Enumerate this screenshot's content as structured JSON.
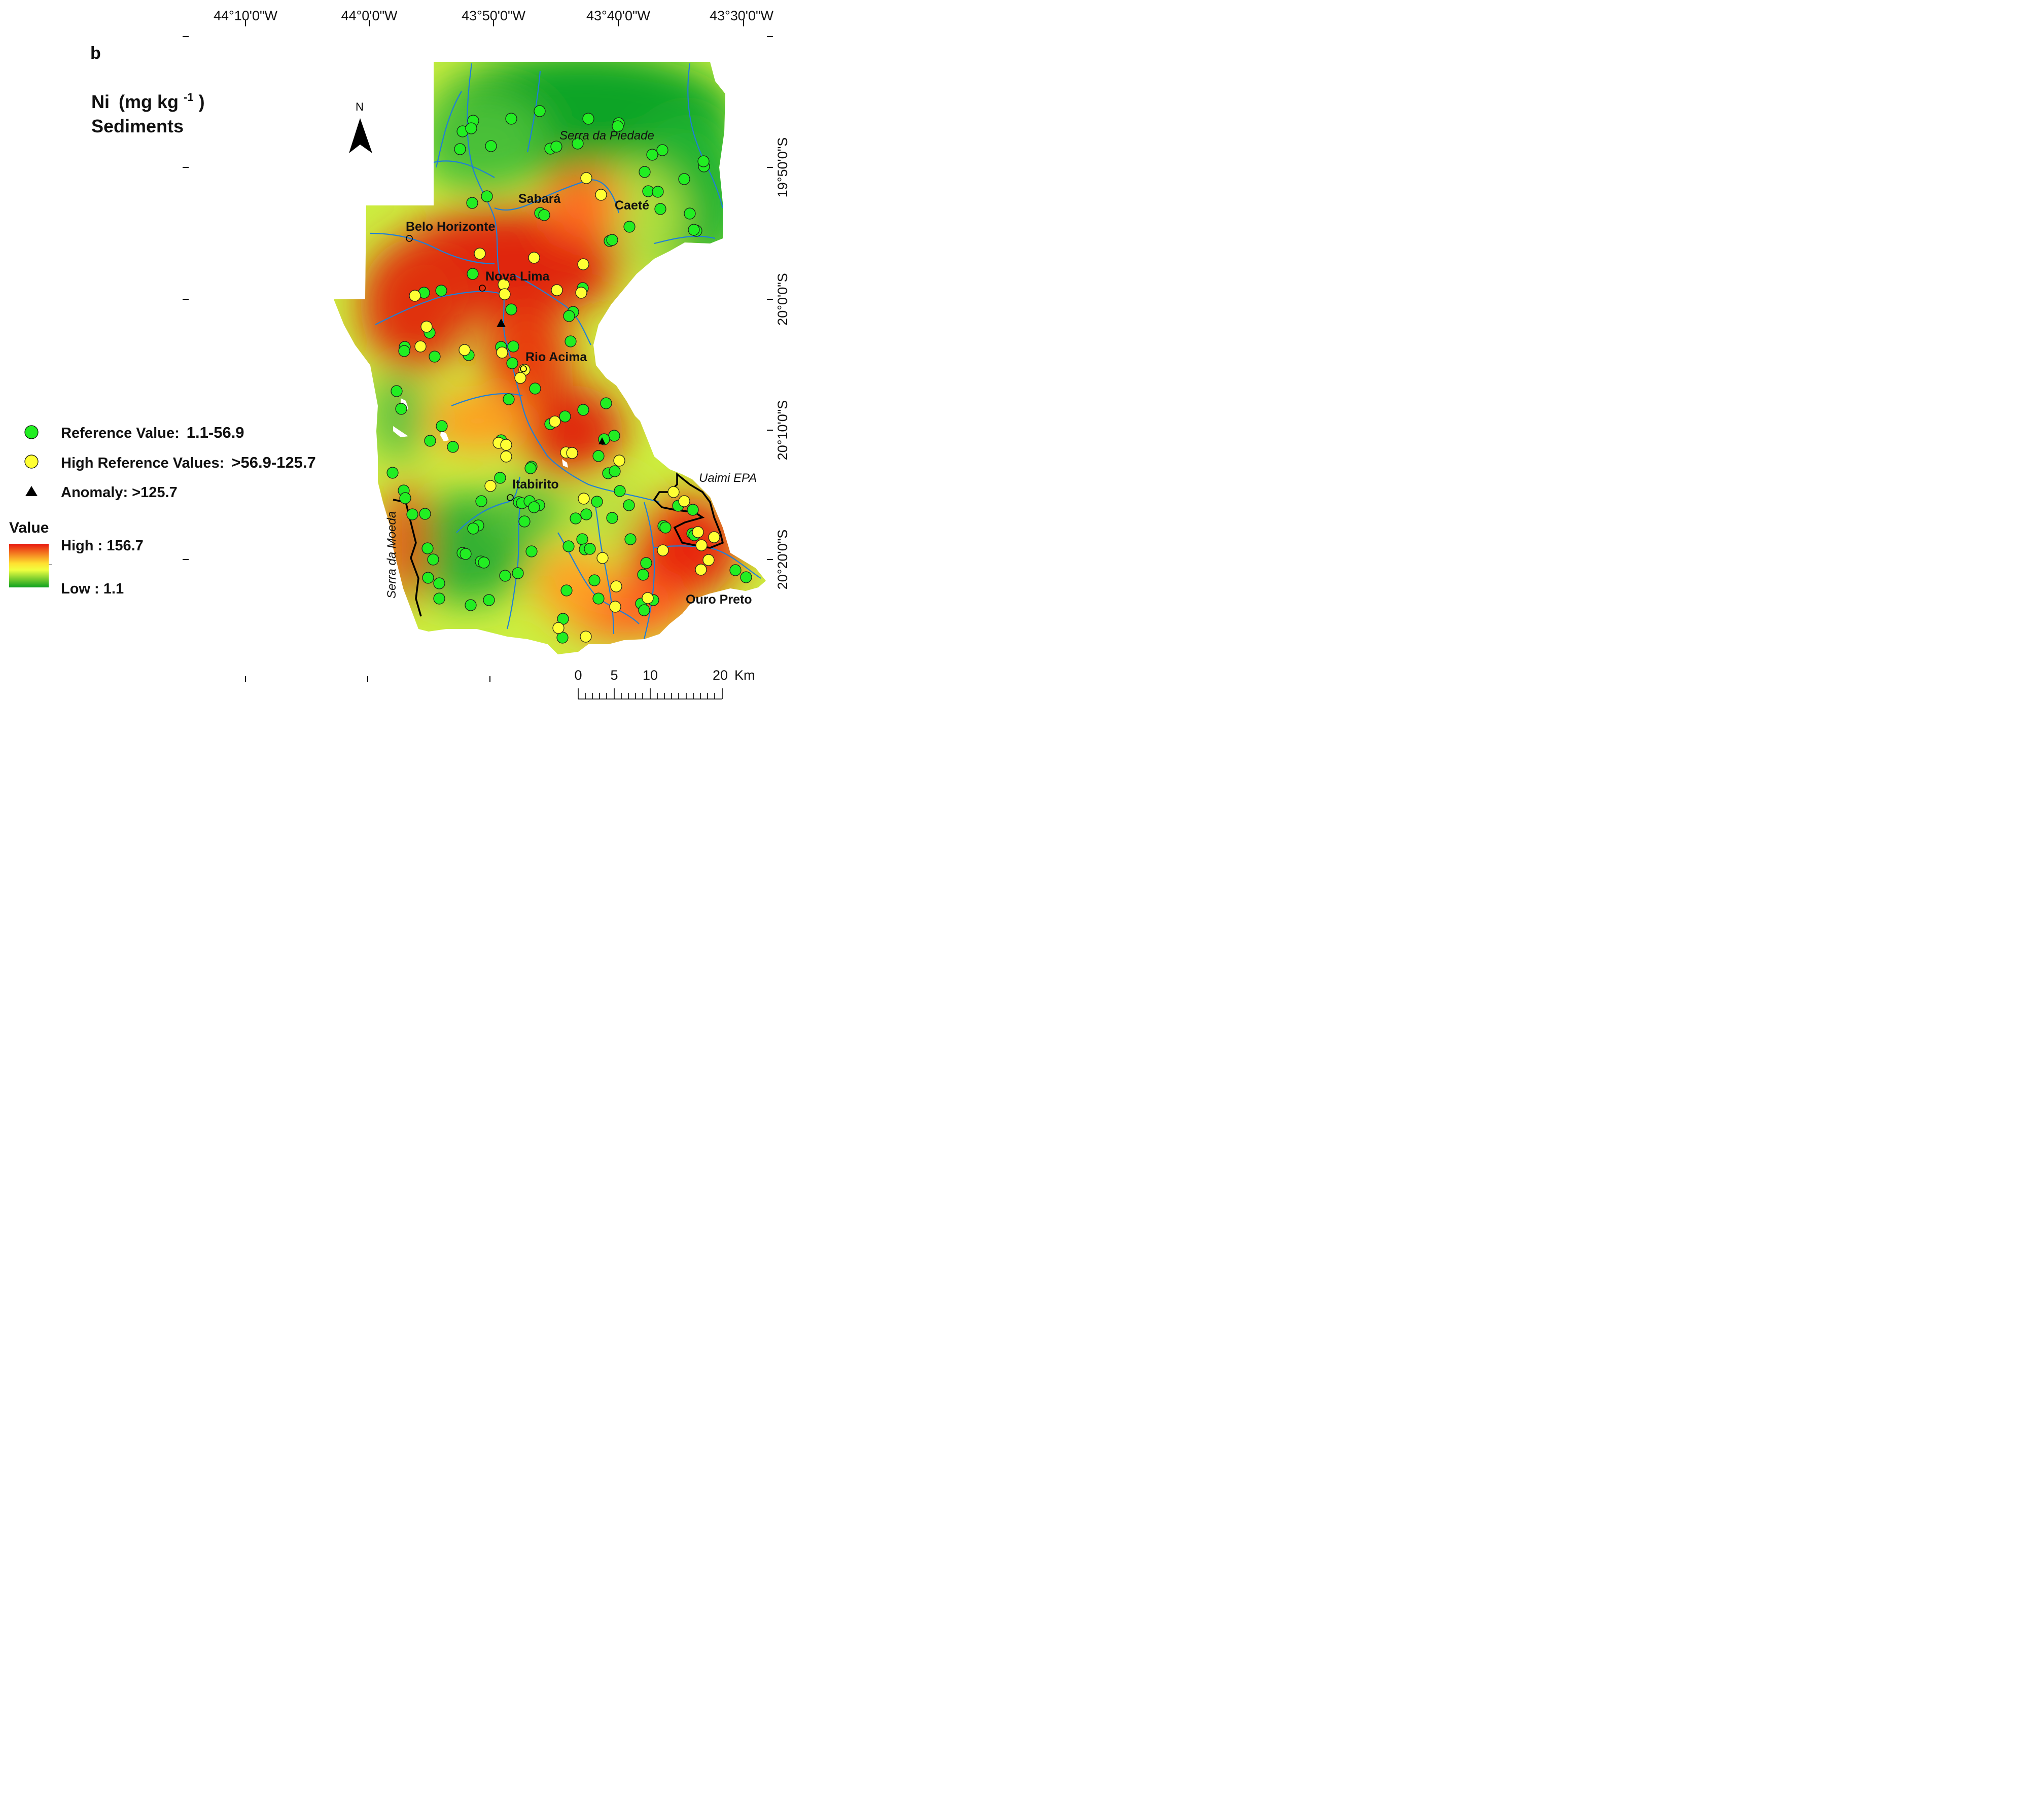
{
  "panel_letter": "b",
  "title": {
    "element": "Ni",
    "unit_prefix": "(mg kg",
    "unit_exp": "-1",
    "unit_suffix": ")",
    "subtitle": "Sediments"
  },
  "north_label": "N",
  "lon_labels": [
    "44°10'0\"W",
    "44°0'0\"W",
    "43°50'0\"W",
    "43°40'0\"W",
    "43°30'0\"W"
  ],
  "lat_labels": [
    "19°50'0\"S",
    "20°0'0\"S",
    "20°10'0\"S",
    "20°20'0\"S"
  ],
  "places": {
    "sabara": "Sabará",
    "caete": "Caeté",
    "belo_horizonte": "Belo Horizonte",
    "nova_lima": "Nova Lima",
    "rio_acima": "Rio Acima",
    "itabirito": "Itabirito",
    "ouro_preto": "Ouro Preto",
    "serra_piedade": "Serra da Piedade",
    "uaimi": "Uaimi EPA",
    "serra_moeda": "Serra da Moeda"
  },
  "legend": {
    "reference_label": "Reference Value:",
    "reference_range": "1.1-56.9",
    "high_label": "High Reference Values:",
    "high_range": ">56.9-125.7",
    "anomaly_label": "Anomaly: >125.7",
    "value_title": "Value",
    "high_value": "High : 156.7",
    "low_value": "Low : 1.1"
  },
  "scale_bar": {
    "ticks": [
      "0",
      "5",
      "10",
      "20"
    ],
    "unit": "Km"
  },
  "colors": {
    "reference_point": "#22ee22",
    "high_point": "#ffff33",
    "anomaly": "#000000",
    "river": "#1f7fd8",
    "ramp_high": "#e82010",
    "ramp_mid": "#ffff40",
    "ramp_low": "#10a020"
  },
  "icons": [
    "north-arrow-icon",
    "green-circle-icon",
    "yellow-circle-icon",
    "black-triangle-icon"
  ]
}
